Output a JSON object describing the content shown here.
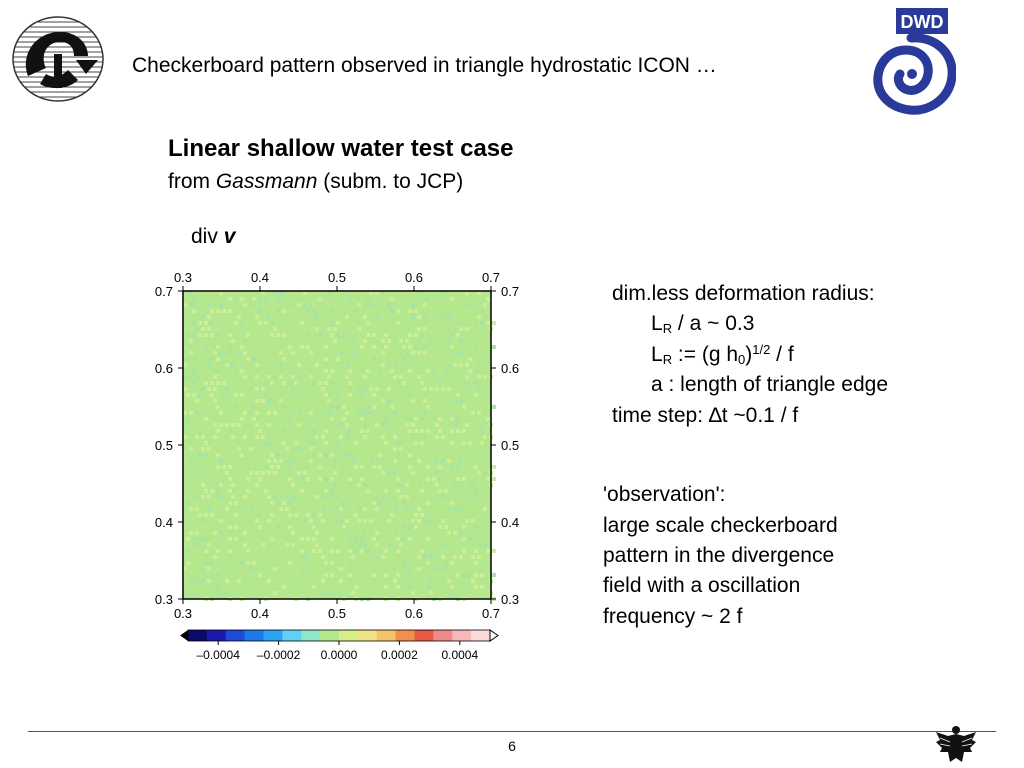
{
  "header": {
    "title": "Checkerboard pattern observed in triangle hydrostatic ICON …",
    "dwd_logo_text": "DWD"
  },
  "section": {
    "title": "Linear shallow water test case",
    "subtitle_prefix": "from ",
    "subtitle_author": "Gassmann",
    "subtitle_suffix": " (subm. to JCP)"
  },
  "plot": {
    "label_prefix": "div ",
    "label_var": "v"
  },
  "chart_data": {
    "type": "heatmap",
    "title": "",
    "x_ticks": [
      "0.3",
      "0.4",
      "0.5",
      "0.6",
      "0.7"
    ],
    "y_ticks": [
      "0.7",
      "0.6",
      "0.5",
      "0.4",
      "0.3"
    ],
    "xlim": [
      0.3,
      0.7
    ],
    "ylim": [
      0.3,
      0.7
    ],
    "field_value_approx": 0.0,
    "field_colors": [
      "#b5e78f",
      "#cbee98",
      "#a7e3a2"
    ],
    "colorbar": {
      "ticks": [
        "-0.0004",
        "-0.0002",
        "0.0000",
        "0.0002",
        "0.0004"
      ],
      "range": [
        -0.0005,
        0.0005
      ],
      "colors": [
        "#0b0b6b",
        "#1a1ab0",
        "#1f4bd6",
        "#1f78e8",
        "#2aa3f0",
        "#62d0f2",
        "#8fe6c8",
        "#b5e78f",
        "#d8ee8a",
        "#efe38a",
        "#f5c46a",
        "#f0904f",
        "#e85a45",
        "#ee8a8a",
        "#f7b8b8",
        "#fbdada"
      ]
    }
  },
  "params": {
    "heading": "dim.less deformation radius:",
    "line1_L": "L",
    "line1_sub": "R",
    "line1_rest": " / a ~ 0.3",
    "line2_L": "L",
    "line2_sub": "R",
    "line2_mid": " := (g h",
    "line2_sub0": "0",
    "line2_close": ")",
    "line2_sup": "1/2",
    "line2_end": " / f",
    "line3": "a : length of triangle edge",
    "timestep_prefix": "time step: ",
    "timestep_delta": "∆",
    "timestep_rest": "t ~0.1 / f"
  },
  "observation": {
    "lines": [
      "'observation':",
      "large scale checkerboard",
      "pattern in the divergence",
      "field with a oscillation",
      "frequency ~ 2 f"
    ]
  },
  "footer": {
    "page_number": "6"
  }
}
